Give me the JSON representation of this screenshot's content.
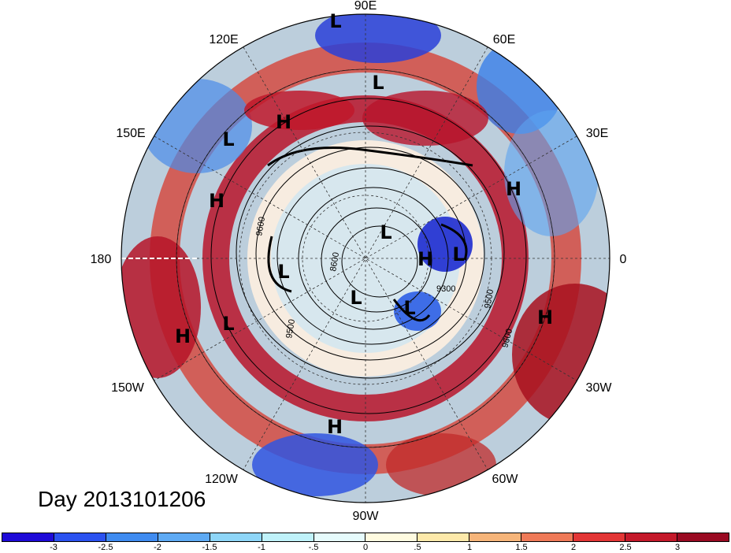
{
  "title": "Day 2013101206",
  "longitude_labels": {
    "e90": "90E",
    "e120": "120E",
    "e60": "60E",
    "e150": "150E",
    "e30": "30E",
    "lon180": "180",
    "lon0": "0",
    "w150": "150W",
    "w30": "30W",
    "w120": "120W",
    "w60": "60W",
    "w90": "90W"
  },
  "pressure_centers": [
    {
      "label": "L"
    },
    {
      "label": "L"
    },
    {
      "label": "H"
    },
    {
      "label": "L"
    },
    {
      "label": "H"
    },
    {
      "label": "H"
    },
    {
      "label": "L"
    },
    {
      "label": "H"
    },
    {
      "label": "L"
    },
    {
      "label": "L"
    },
    {
      "label": "L"
    },
    {
      "label": "L"
    },
    {
      "label": "L"
    },
    {
      "label": "H"
    },
    {
      "label": "H"
    },
    {
      "label": "L"
    },
    {
      "label": "H"
    }
  ],
  "contour_labels": [
    "9600",
    "8600",
    "9500",
    "9300",
    "9500",
    "9600"
  ],
  "colorbar": {
    "colors": [
      "#1e0ad8",
      "#2b52f0",
      "#3f8bf0",
      "#5eaaf4",
      "#8ed6f8",
      "#bff2fa",
      "#e6fbfc",
      "#fffbe0",
      "#fde9aa",
      "#f6b57a",
      "#ef7a58",
      "#e33636",
      "#c4192a",
      "#9a0a22"
    ],
    "tick_labels": [
      "-3",
      "-2.5",
      "-2",
      "-1.5",
      "-1",
      "-.5",
      "0",
      ".5",
      "1",
      "1.5",
      "2",
      "2.5",
      "3"
    ]
  }
}
